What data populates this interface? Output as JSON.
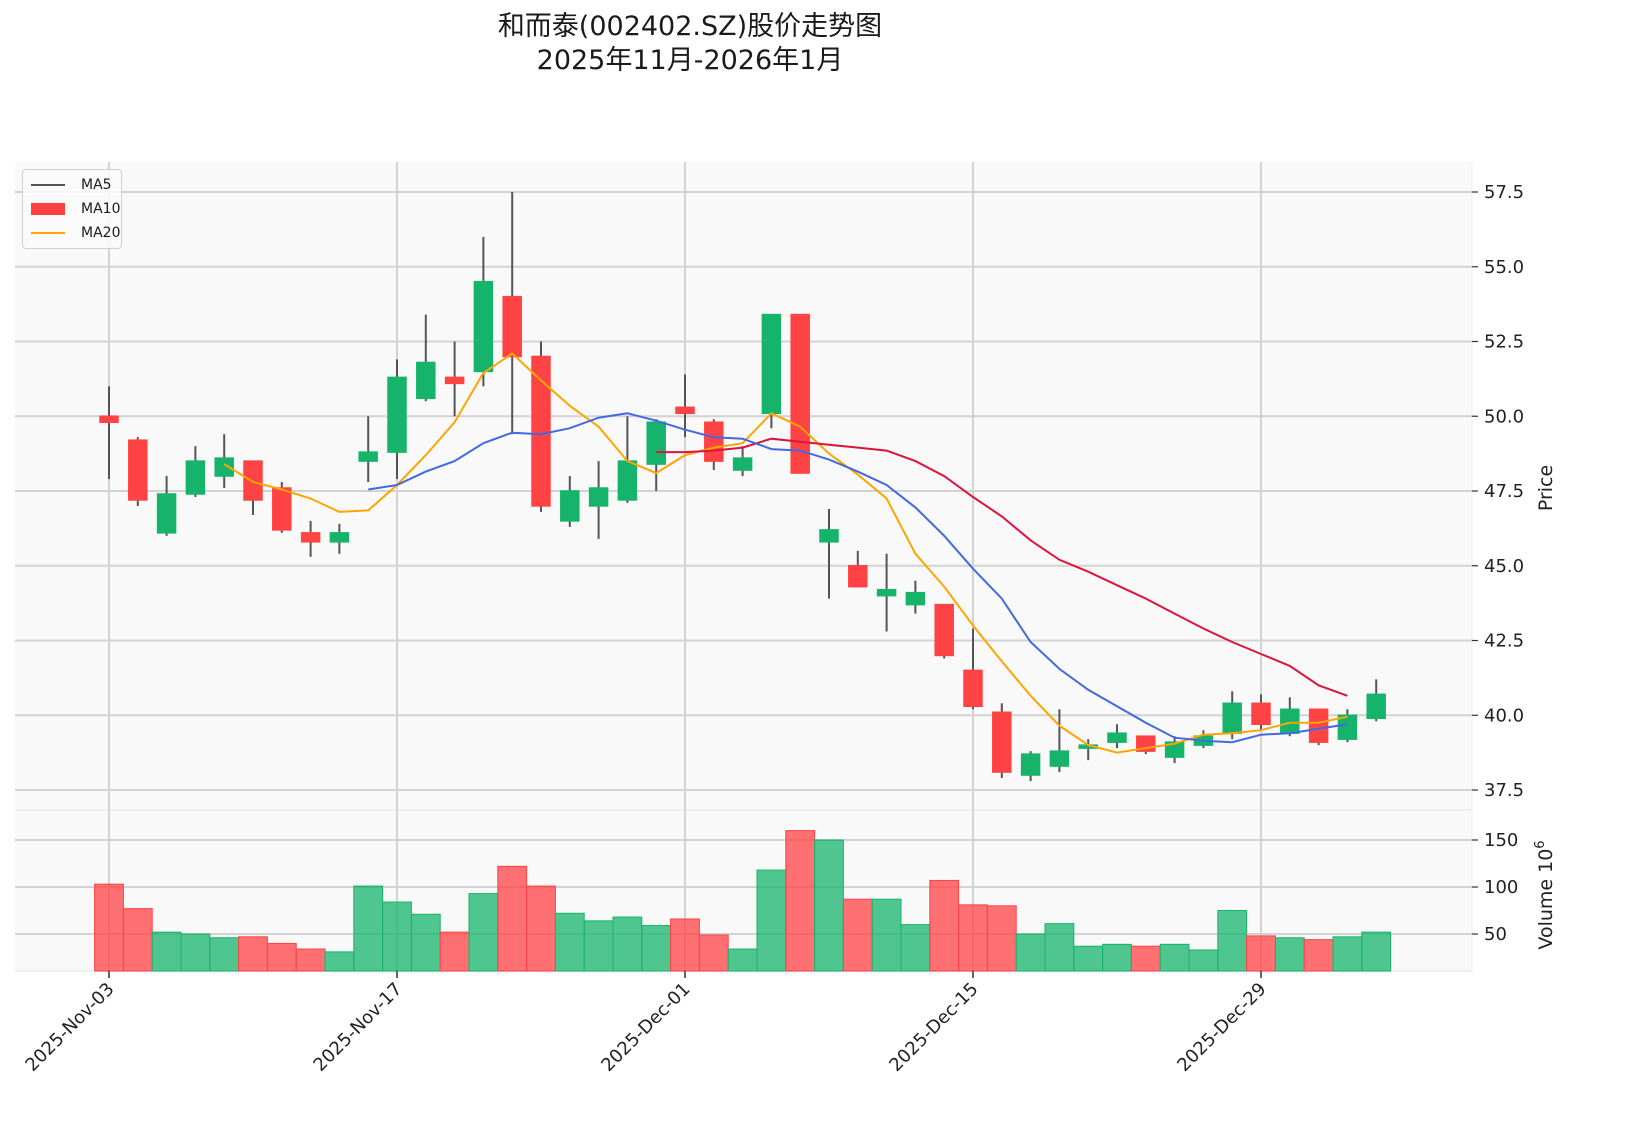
{
  "title": {
    "line1": "和而泰(002402.SZ)股价走势图",
    "line2": "2025年11月-2026年1月"
  },
  "legend": [
    {
      "label": "MA5",
      "color": "#555555",
      "kind": "line"
    },
    {
      "label": "MA10",
      "color": "#ff4040",
      "kind": "patch"
    },
    {
      "label": "MA20",
      "color": "#ffa500",
      "kind": "line"
    }
  ],
  "colors": {
    "up": "#16b46b",
    "down": "#ff4244",
    "wick": "#555555",
    "ma5": "#4169e1",
    "ma10": "#dc143c",
    "ma20": "#ffa500",
    "grid": "#d3d3d3",
    "panel_bg": "#f9f9f9"
  },
  "axes": {
    "price_label": "Price",
    "volume_label": "Volume",
    "volume_exponent": "10",
    "volume_exponent_power": "6",
    "price_ticks": [
      "37.5",
      "40.0",
      "42.5",
      "45.0",
      "47.5",
      "50.0",
      "52.5",
      "55.0",
      "57.5"
    ],
    "volume_ticks": [
      "50",
      "100",
      "150"
    ],
    "x_ticks": [
      {
        "label": "2025-Nov-03",
        "index": 0
      },
      {
        "label": "2025-Nov-17",
        "index": 10
      },
      {
        "label": "2025-Dec-01",
        "index": 20
      },
      {
        "label": "2025-Dec-15",
        "index": 30
      },
      {
        "label": "2025-Dec-29",
        "index": 40
      }
    ]
  },
  "chart_data": {
    "type": "candlestick",
    "title": "和而泰(002402.SZ)股价走势图 2025年11月-2026年1月",
    "xlabel": "",
    "ylabel": "Price",
    "ylabel_volume": "Volume 10^6",
    "ylim": [
      36.8,
      58.5
    ],
    "ylim_volume": [
      10.6,
      170
    ],
    "grid": true,
    "legend_position": "upper left",
    "legend": [
      "MA5",
      "MA10",
      "MA20"
    ],
    "dates": [
      "2025-11-03",
      "2025-11-04",
      "2025-11-05",
      "2025-11-06",
      "2025-11-07",
      "2025-11-10",
      "2025-11-11",
      "2025-11-12",
      "2025-11-13",
      "2025-11-14",
      "2025-11-17",
      "2025-11-18",
      "2025-11-19",
      "2025-11-20",
      "2025-11-21",
      "2025-11-24",
      "2025-11-25",
      "2025-11-26",
      "2025-11-27",
      "2025-11-28",
      "2025-12-01",
      "2025-12-02",
      "2025-12-03",
      "2025-12-04",
      "2025-12-05",
      "2025-12-08",
      "2025-12-09",
      "2025-12-10",
      "2025-12-11",
      "2025-12-12",
      "2025-12-15",
      "2025-12-16",
      "2025-12-17",
      "2025-12-18",
      "2025-12-19",
      "2025-12-22",
      "2025-12-23",
      "2025-12-24",
      "2025-12-25",
      "2025-12-26",
      "2025-12-29",
      "2025-12-30",
      "2025-12-31",
      "2026-01-01",
      "2026-01-02"
    ],
    "open": [
      50.0,
      49.2,
      46.1,
      47.4,
      48.0,
      48.5,
      47.6,
      46.1,
      45.8,
      48.5,
      48.8,
      50.6,
      51.3,
      51.5,
      54.0,
      52.0,
      46.5,
      47.0,
      47.2,
      48.4,
      50.3,
      49.8,
      48.2,
      50.1,
      53.4,
      45.8,
      45.0,
      44.0,
      43.7,
      43.7,
      41.5,
      40.1,
      38.0,
      38.3,
      38.9,
      39.1,
      39.3,
      38.6,
      39.0,
      39.4,
      40.4,
      39.4,
      40.2,
      39.2,
      39.9
    ],
    "high": [
      51.0,
      49.3,
      48.0,
      49.0,
      49.4,
      48.5,
      47.8,
      46.5,
      46.4,
      50.0,
      51.9,
      53.4,
      52.5,
      56.0,
      57.5,
      52.5,
      48.0,
      48.5,
      50.0,
      49.9,
      51.4,
      49.9,
      49.0,
      53.4,
      53.4,
      46.9,
      45.5,
      45.4,
      44.5,
      43.7,
      42.9,
      40.4,
      38.8,
      40.2,
      39.2,
      39.7,
      39.3,
      39.3,
      39.5,
      40.8,
      40.7,
      40.6,
      40.2,
      40.2,
      41.2
    ],
    "low": [
      47.9,
      47.0,
      46.0,
      47.3,
      47.6,
      46.7,
      46.1,
      45.3,
      45.4,
      47.8,
      47.9,
      50.5,
      50.0,
      51.0,
      49.4,
      46.8,
      46.3,
      45.9,
      47.1,
      47.5,
      49.3,
      48.2,
      48.0,
      49.6,
      48.1,
      43.9,
      44.3,
      42.8,
      43.4,
      41.9,
      40.2,
      37.9,
      37.8,
      38.1,
      38.5,
      38.9,
      38.7,
      38.4,
      38.9,
      39.2,
      39.5,
      39.3,
      39.0,
      39.1,
      39.8
    ],
    "close": [
      49.8,
      47.2,
      47.4,
      48.5,
      48.6,
      47.2,
      46.2,
      45.8,
      46.1,
      48.8,
      51.3,
      51.8,
      51.1,
      54.5,
      52.0,
      47.0,
      47.5,
      47.6,
      48.5,
      49.8,
      50.1,
      48.5,
      48.6,
      53.4,
      48.1,
      46.2,
      44.3,
      44.2,
      44.1,
      42.0,
      40.3,
      38.1,
      38.7,
      38.8,
      39.0,
      39.4,
      38.8,
      39.1,
      39.3,
      40.4,
      39.7,
      40.2,
      39.1,
      40.0,
      40.7
    ],
    "volume": [
      103,
      77,
      52,
      50,
      46,
      47,
      40,
      34,
      31,
      101,
      84,
      71,
      52,
      93,
      122,
      101,
      72,
      64,
      68,
      59,
      66,
      49,
      34,
      118,
      160,
      150,
      87,
      87,
      60,
      107,
      81,
      80,
      50,
      61,
      37,
      39,
      37,
      39,
      33,
      75,
      48,
      46,
      44,
      47,
      52
    ],
    "ma5": [
      null,
      null,
      null,
      null,
      null,
      null,
      null,
      null,
      null,
      47.55,
      47.7,
      48.15,
      48.5,
      49.1,
      49.45,
      49.4,
      49.6,
      49.95,
      50.1,
      49.85,
      49.55,
      49.3,
      49.25,
      48.9,
      48.85,
      48.55,
      48.15,
      47.7,
      46.95,
      46.0,
      44.9,
      43.9,
      42.45,
      41.55,
      40.85,
      40.3,
      39.75,
      39.25,
      39.15,
      39.1,
      39.35,
      39.4,
      39.55,
      39.7,
      null
    ],
    "ma10": [
      null,
      null,
      null,
      null,
      null,
      null,
      null,
      null,
      null,
      null,
      null,
      null,
      null,
      null,
      null,
      null,
      null,
      null,
      null,
      48.8,
      48.8,
      48.85,
      48.95,
      49.25,
      49.15,
      49.05,
      48.95,
      48.85,
      48.5,
      48.0,
      47.3,
      46.65,
      45.85,
      45.2,
      44.8,
      44.35,
      43.9,
      43.4,
      42.9,
      42.45,
      42.05,
      41.65,
      41.0,
      40.65,
      null
    ],
    "ma20": [
      null,
      null,
      null,
      null,
      48.4,
      47.8,
      47.55,
      47.25,
      46.8,
      46.85,
      47.7,
      48.7,
      49.8,
      51.45,
      52.1,
      51.2,
      50.35,
      49.65,
      48.5,
      48.1,
      48.7,
      48.95,
      49.1,
      50.1,
      49.65,
      48.75,
      48.05,
      47.25,
      45.4,
      44.3,
      43.0,
      41.8,
      40.65,
      39.65,
      39.0,
      38.75,
      38.9,
      39.05,
      39.35,
      39.4,
      39.5,
      39.75,
      39.75,
      39.95,
      null
    ]
  }
}
